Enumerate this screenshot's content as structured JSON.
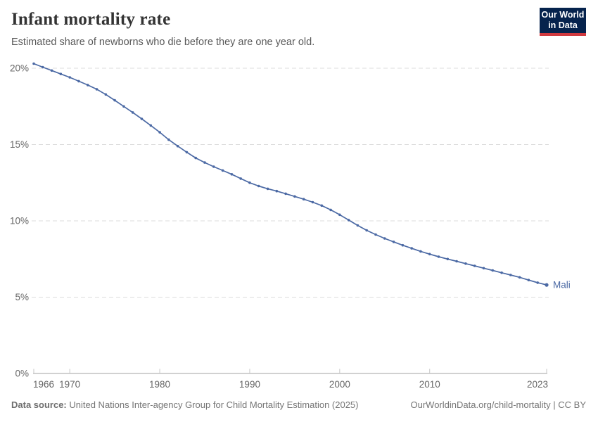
{
  "header": {
    "title": "Infant mortality rate",
    "subtitle": "Estimated share of newborns who die before they are one year old."
  },
  "logo": {
    "line1": "Our World",
    "line2": "in Data",
    "bg_color": "#06234d",
    "accent_color": "#d0393f"
  },
  "footer": {
    "data_source_label": "Data source:",
    "data_source_text": " United Nations Inter-agency Group for Child Mortality Estimation (2025)",
    "right_text": "OurWorldinData.org/child-mortality | CC BY"
  },
  "chart_data": {
    "type": "line",
    "title": "Infant mortality rate",
    "subtitle": "Estimated share of newborns who die before they are one year old.",
    "xlabel": "",
    "ylabel": "",
    "grid": "horizontal-dashed",
    "legend_position": "end-of-line-label",
    "xlim": [
      1966,
      2023
    ],
    "ylim": [
      0,
      20
    ],
    "x_ticks": [
      1966,
      1970,
      1980,
      1990,
      2000,
      2010,
      2023
    ],
    "y_ticks": [
      0,
      5,
      10,
      15,
      20
    ],
    "y_tick_suffix": "%",
    "line_color": "#4b69a4",
    "gridline_color": "#dcdcdc",
    "axis_line_color": "#a3a3a3",
    "tick_color": "#c6c6c6",
    "tick_label_color": "#666666",
    "series": [
      {
        "name": "Mali",
        "x": [
          1966,
          1967,
          1968,
          1969,
          1970,
          1971,
          1972,
          1973,
          1974,
          1975,
          1976,
          1977,
          1978,
          1979,
          1980,
          1981,
          1982,
          1983,
          1984,
          1985,
          1986,
          1987,
          1988,
          1989,
          1990,
          1991,
          1992,
          1993,
          1994,
          1995,
          1996,
          1997,
          1998,
          1999,
          2000,
          2001,
          2002,
          2003,
          2004,
          2005,
          2006,
          2007,
          2008,
          2009,
          2010,
          2011,
          2012,
          2013,
          2014,
          2015,
          2016,
          2017,
          2018,
          2019,
          2020,
          2021,
          2022,
          2023
        ],
        "values": [
          20.3,
          20.07,
          19.85,
          19.62,
          19.4,
          19.15,
          18.9,
          18.62,
          18.28,
          17.9,
          17.5,
          17.1,
          16.68,
          16.25,
          15.8,
          15.32,
          14.9,
          14.5,
          14.12,
          13.82,
          13.55,
          13.3,
          13.05,
          12.77,
          12.5,
          12.28,
          12.1,
          11.95,
          11.78,
          11.6,
          11.42,
          11.22,
          11.0,
          10.72,
          10.4,
          10.05,
          9.7,
          9.38,
          9.1,
          8.85,
          8.62,
          8.4,
          8.2,
          8.0,
          7.82,
          7.65,
          7.5,
          7.35,
          7.2,
          7.05,
          6.9,
          6.75,
          6.6,
          6.45,
          6.3,
          6.12,
          5.95,
          5.8
        ]
      }
    ]
  }
}
